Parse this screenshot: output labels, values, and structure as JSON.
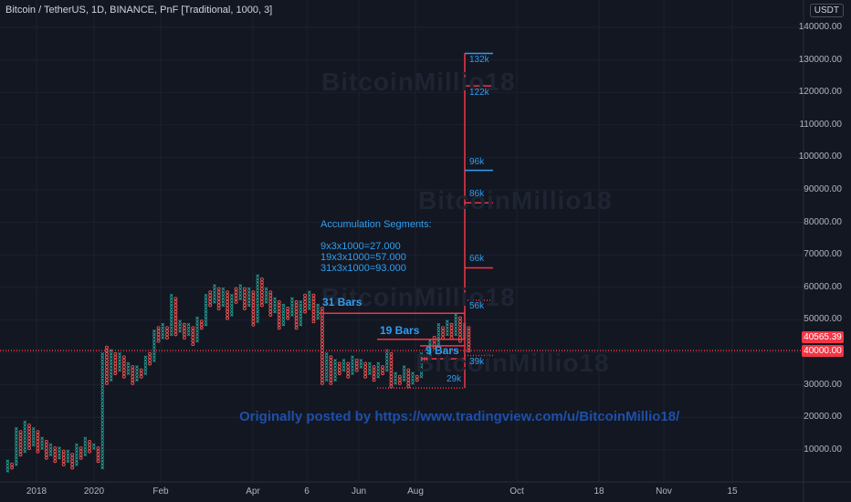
{
  "header": {
    "title": "Bitcoin / TetherUS, 1D, BINANCE, PnF [Traditional, 1000, 3]",
    "currency": "USDT"
  },
  "y_axis": {
    "ticks": [
      "140000.00",
      "130000.00",
      "120000.00",
      "110000.00",
      "100000.00",
      "90000.00",
      "80000.00",
      "70000.00",
      "60000.00",
      "50000.00",
      "30000.00",
      "20000.00",
      "10000.00"
    ]
  },
  "x_axis": {
    "ticks": [
      "2018",
      "2020",
      "Feb",
      "Apr",
      "6",
      "Jun",
      "Aug",
      "Oct",
      "18",
      "Nov",
      "15"
    ]
  },
  "price_tags": {
    "current": "40565.39",
    "level": "40000.00"
  },
  "annotations": {
    "accumulation_title": "Accumulation Segments:",
    "accumulation_lines": [
      "9x3x1000=27.000",
      "19x3x1000=57.000",
      "31x3x1000=93.000"
    ],
    "bars": [
      "31 Bars",
      "19 Bars",
      "9 Bars"
    ],
    "levels": [
      "132k",
      "122k",
      "96k",
      "86k",
      "66k",
      "56k",
      "39k",
      "29k"
    ],
    "watermark": "BitcoinMillio18",
    "footer": "Originally posted by https://www.tradingview.com/u/BitcoinMillio18/"
  },
  "colors": {
    "background": "#131722",
    "x_color": "#26a69a",
    "o_color": "#ef5350",
    "annotation_red": "#f23645",
    "annotation_blue": "#2f9ef0"
  },
  "chart_data": {
    "type": "point_and_figure",
    "box_size": 1000,
    "reversal": 3,
    "ylim": [
      0,
      140000
    ],
    "columns": [
      {
        "kind": "x",
        "low": 3000,
        "high": 7000
      },
      {
        "kind": "o",
        "low": 4000,
        "high": 6000
      },
      {
        "kind": "x",
        "low": 5000,
        "high": 17000
      },
      {
        "kind": "o",
        "low": 8000,
        "high": 16000
      },
      {
        "kind": "x",
        "low": 9000,
        "high": 19000
      },
      {
        "kind": "o",
        "low": 10000,
        "high": 18000
      },
      {
        "kind": "x",
        "low": 11000,
        "high": 17000
      },
      {
        "kind": "o",
        "low": 9000,
        "high": 16000
      },
      {
        "kind": "x",
        "low": 10000,
        "high": 14000
      },
      {
        "kind": "o",
        "low": 7000,
        "high": 13000
      },
      {
        "kind": "x",
        "low": 8000,
        "high": 12000
      },
      {
        "kind": "o",
        "low": 6000,
        "high": 11000
      },
      {
        "kind": "x",
        "low": 7000,
        "high": 11000
      },
      {
        "kind": "o",
        "low": 5000,
        "high": 10000
      },
      {
        "kind": "x",
        "low": 6000,
        "high": 10000
      },
      {
        "kind": "o",
        "low": 4000,
        "high": 9000
      },
      {
        "kind": "x",
        "low": 5000,
        "high": 12000
      },
      {
        "kind": "o",
        "low": 7000,
        "high": 11000
      },
      {
        "kind": "x",
        "low": 8000,
        "high": 14000
      },
      {
        "kind": "o",
        "low": 9000,
        "high": 13000
      },
      {
        "kind": "x",
        "low": 10000,
        "high": 12000
      },
      {
        "kind": "o",
        "low": 6000,
        "high": 11000
      },
      {
        "kind": "x",
        "low": 4000,
        "high": 40000
      },
      {
        "kind": "o",
        "low": 30000,
        "high": 42000
      },
      {
        "kind": "x",
        "low": 31000,
        "high": 41000
      },
      {
        "kind": "o",
        "low": 33000,
        "high": 40000
      },
      {
        "kind": "x",
        "low": 34000,
        "high": 40000
      },
      {
        "kind": "o",
        "low": 32000,
        "high": 39000
      },
      {
        "kind": "x",
        "low": 33000,
        "high": 37000
      },
      {
        "kind": "o",
        "low": 30000,
        "high": 36000
      },
      {
        "kind": "x",
        "low": 31000,
        "high": 36000
      },
      {
        "kind": "o",
        "low": 32000,
        "high": 35000
      },
      {
        "kind": "x",
        "low": 33000,
        "high": 39000
      },
      {
        "kind": "o",
        "low": 36000,
        "high": 40000
      },
      {
        "kind": "x",
        "low": 37000,
        "high": 47000
      },
      {
        "kind": "o",
        "low": 43000,
        "high": 48000
      },
      {
        "kind": "x",
        "low": 44000,
        "high": 49000
      },
      {
        "kind": "o",
        "low": 44000,
        "high": 48000
      },
      {
        "kind": "x",
        "low": 45000,
        "high": 58000
      },
      {
        "kind": "o",
        "low": 45000,
        "high": 57000
      },
      {
        "kind": "x",
        "low": 46000,
        "high": 50000
      },
      {
        "kind": "o",
        "low": 44000,
        "high": 49000
      },
      {
        "kind": "x",
        "low": 45000,
        "high": 49000
      },
      {
        "kind": "o",
        "low": 42000,
        "high": 48000
      },
      {
        "kind": "x",
        "low": 43000,
        "high": 51000
      },
      {
        "kind": "o",
        "low": 47000,
        "high": 50000
      },
      {
        "kind": "x",
        "low": 48000,
        "high": 58000
      },
      {
        "kind": "o",
        "low": 54000,
        "high": 59000
      },
      {
        "kind": "x",
        "low": 55000,
        "high": 61000
      },
      {
        "kind": "o",
        "low": 53000,
        "high": 60000
      },
      {
        "kind": "x",
        "low": 54000,
        "high": 60000
      },
      {
        "kind": "o",
        "low": 50000,
        "high": 59000
      },
      {
        "kind": "x",
        "low": 51000,
        "high": 58000
      },
      {
        "kind": "o",
        "low": 55000,
        "high": 60000
      },
      {
        "kind": "x",
        "low": 56000,
        "high": 61000
      },
      {
        "kind": "o",
        "low": 53000,
        "high": 60000
      },
      {
        "kind": "x",
        "low": 54000,
        "high": 60000
      },
      {
        "kind": "o",
        "low": 48000,
        "high": 59000
      },
      {
        "kind": "x",
        "low": 49000,
        "high": 64000
      },
      {
        "kind": "o",
        "low": 54000,
        "high": 63000
      },
      {
        "kind": "x",
        "low": 55000,
        "high": 60000
      },
      {
        "kind": "o",
        "low": 51000,
        "high": 59000
      },
      {
        "kind": "x",
        "low": 52000,
        "high": 57000
      },
      {
        "kind": "o",
        "low": 47000,
        "high": 56000
      },
      {
        "kind": "x",
        "low": 48000,
        "high": 55000
      },
      {
        "kind": "o",
        "low": 50000,
        "high": 54000
      },
      {
        "kind": "x",
        "low": 51000,
        "high": 57000
      },
      {
        "kind": "o",
        "low": 47000,
        "high": 56000
      },
      {
        "kind": "x",
        "low": 48000,
        "high": 56000
      },
      {
        "kind": "o",
        "low": 52000,
        "high": 58000
      },
      {
        "kind": "x",
        "low": 53000,
        "high": 59000
      },
      {
        "kind": "o",
        "low": 49000,
        "high": 58000
      },
      {
        "kind": "x",
        "low": 50000,
        "high": 55000
      },
      {
        "kind": "o",
        "low": 30000,
        "high": 54000
      },
      {
        "kind": "x",
        "low": 31000,
        "high": 40000
      },
      {
        "kind": "o",
        "low": 30000,
        "high": 39000
      },
      {
        "kind": "x",
        "low": 31000,
        "high": 38000
      },
      {
        "kind": "o",
        "low": 33000,
        "high": 37000
      },
      {
        "kind": "x",
        "low": 34000,
        "high": 38000
      },
      {
        "kind": "o",
        "low": 32000,
        "high": 37000
      },
      {
        "kind": "x",
        "low": 33000,
        "high": 39000
      },
      {
        "kind": "o",
        "low": 34000,
        "high": 38000
      },
      {
        "kind": "x",
        "low": 35000,
        "high": 38000
      },
      {
        "kind": "o",
        "low": 32000,
        "high": 37000
      },
      {
        "kind": "x",
        "low": 33000,
        "high": 37000
      },
      {
        "kind": "o",
        "low": 31000,
        "high": 36000
      },
      {
        "kind": "x",
        "low": 32000,
        "high": 37000
      },
      {
        "kind": "o",
        "low": 33000,
        "high": 36000
      },
      {
        "kind": "x",
        "low": 34000,
        "high": 41000
      },
      {
        "kind": "o",
        "low": 29000,
        "high": 40000
      },
      {
        "kind": "x",
        "low": 30000,
        "high": 34000
      },
      {
        "kind": "o",
        "low": 30000,
        "high": 33000
      },
      {
        "kind": "x",
        "low": 31000,
        "high": 36000
      },
      {
        "kind": "o",
        "low": 29000,
        "high": 35000
      },
      {
        "kind": "x",
        "low": 30000,
        "high": 34000
      },
      {
        "kind": "o",
        "low": 31000,
        "high": 33000
      },
      {
        "kind": "x",
        "low": 32000,
        "high": 40000
      },
      {
        "kind": "o",
        "low": 37000,
        "high": 39000
      },
      {
        "kind": "x",
        "low": 38000,
        "high": 44000
      },
      {
        "kind": "o",
        "low": 41000,
        "high": 45000
      },
      {
        "kind": "x",
        "low": 42000,
        "high": 49000
      },
      {
        "kind": "o",
        "low": 44000,
        "high": 48000
      },
      {
        "kind": "x",
        "low": 45000,
        "high": 50000
      },
      {
        "kind": "o",
        "low": 44000,
        "high": 49000
      },
      {
        "kind": "x",
        "low": 45000,
        "high": 52000
      },
      {
        "kind": "o",
        "low": 43000,
        "high": 51000
      },
      {
        "kind": "x",
        "low": 44000,
        "high": 49000
      },
      {
        "kind": "o",
        "low": 40000,
        "high": 48000
      }
    ]
  }
}
